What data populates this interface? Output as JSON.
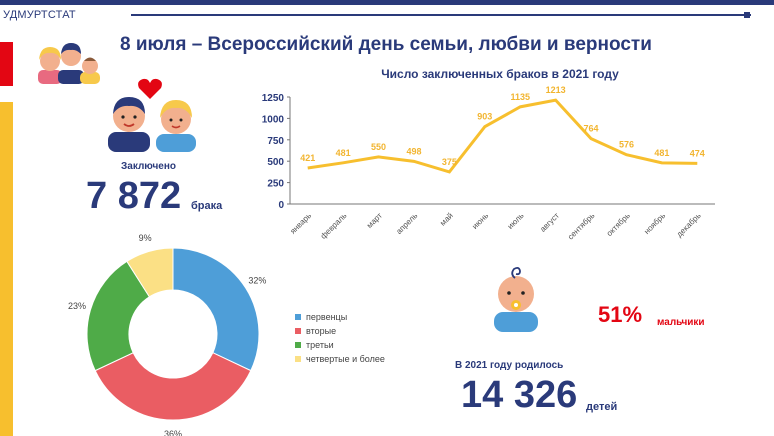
{
  "header": {
    "org": "УДМУРТСТАТ",
    "title": "8 июля – Всероссийский день семьи, любви и верности"
  },
  "marriages": {
    "label": "Заключено",
    "value": "7 872",
    "unit": "брака"
  },
  "births": {
    "label": "В 2021 году родилось",
    "value": "14 326",
    "unit": "детей",
    "boys_pct": "51%",
    "boys_label": "мальчики"
  },
  "colors": {
    "navy": "#2a3a7a",
    "red": "#e30613",
    "yellow": "#f7bf2e",
    "blue": "#4e9ed8",
    "pink": "#ea5d63",
    "green": "#4fab48",
    "lightyellow": "#fbe085"
  },
  "icons": [
    "family-icon",
    "heart-icon",
    "couple-icon",
    "baby-icon"
  ],
  "chart_data": [
    {
      "type": "line",
      "title": "Число заключенных браков в 2021 году",
      "categories": [
        "январь",
        "февраль",
        "март",
        "апрель",
        "май",
        "июнь",
        "июль",
        "август",
        "сентябрь",
        "октябрь",
        "ноябрь",
        "декабрь"
      ],
      "values": [
        421,
        481,
        550,
        498,
        375,
        903,
        1135,
        1213,
        764,
        576,
        481,
        474
      ],
      "ylim": [
        0,
        1250
      ],
      "yticks": [
        0,
        250,
        500,
        750,
        1000,
        1250
      ],
      "grid": false,
      "color": "#f7bf2e"
    },
    {
      "type": "pie",
      "donut": true,
      "slices": [
        {
          "name": "первенцы",
          "value": 32,
          "label": "32%",
          "color": "#4e9ed8"
        },
        {
          "name": "вторые",
          "value": 36,
          "label": "36%",
          "color": "#ea5d63"
        },
        {
          "name": "третьи",
          "value": 23,
          "label": "23%",
          "color": "#4fab48"
        },
        {
          "name": "четвертые и более",
          "value": 9,
          "label": "9%",
          "color": "#fbe085"
        }
      ],
      "legend": "right"
    }
  ]
}
